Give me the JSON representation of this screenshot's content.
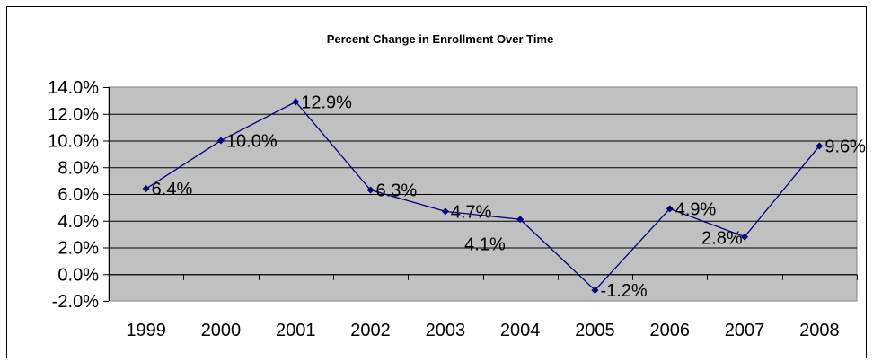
{
  "chart_data": {
    "type": "line",
    "title": "Percent Change in Enrollment Over Time",
    "xlabel": "",
    "ylabel": "",
    "categories": [
      "1999",
      "2000",
      "2001",
      "2002",
      "2003",
      "2004",
      "2005",
      "2006",
      "2007",
      "2008"
    ],
    "series": [
      {
        "values": [
          6.4,
          10.0,
          12.9,
          6.3,
          4.7,
          4.1,
          -1.2,
          4.9,
          2.8,
          9.6
        ],
        "data_labels": [
          "6.4%",
          "10.0%",
          "12.9%",
          "6.3%",
          "4.7%",
          "4.1%",
          "-1.2%",
          "4.9%",
          "2.8%",
          "9.6%"
        ],
        "color": "#000080"
      }
    ],
    "ylim": [
      -2,
      14
    ],
    "y_ticks": [
      14,
      12,
      10,
      8,
      6,
      4,
      2,
      0,
      -2
    ],
    "y_tick_labels": [
      "14.0%",
      "12.0%",
      "10.0%",
      "8.0%",
      "6.0%",
      "4.0%",
      "2.0%",
      "0.0%",
      "-2.0%"
    ],
    "grid": true,
    "legend": "none",
    "plot_background": "#c0c0c0"
  }
}
